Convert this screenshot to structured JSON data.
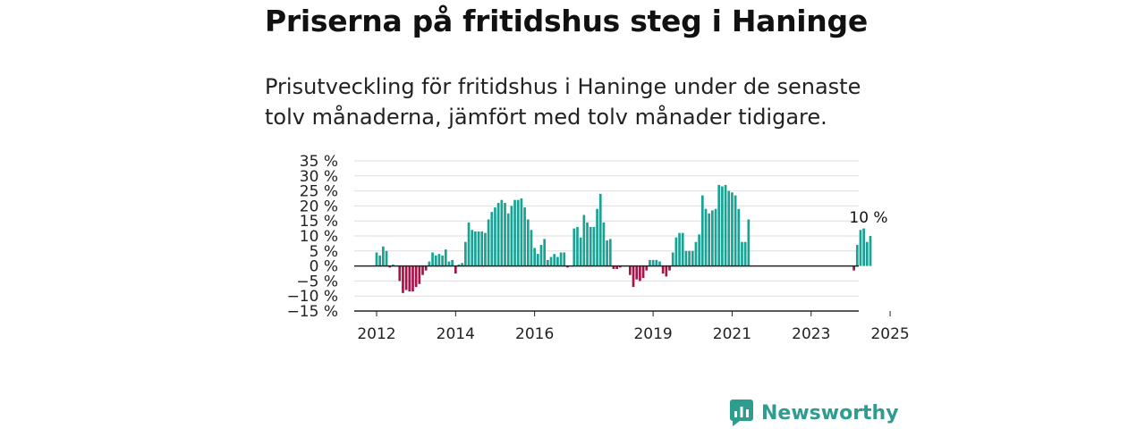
{
  "title": "Priserna på fritidshus steg i Haninge",
  "subtitle": "Prisutveckling för fritidshus i Haninge under de senaste tolv månaderna, jämfört med tolv månader tidigare.",
  "brand": {
    "name": "Newsworthy",
    "logo_icon": "newsworthy-logo-icon",
    "color": "#2e9c8f"
  },
  "colors": {
    "positive": "#1aa294",
    "negative": "#a8144a",
    "grid": "#dddddd",
    "zero_line": "#222222"
  },
  "chart_data": {
    "type": "bar",
    "x_unit": "month",
    "x_start": "2012-01",
    "y_ticks": [
      "35 %",
      "30 %",
      "25 %",
      "20 %",
      "15 %",
      "10 %",
      "5 %",
      "0 %",
      "−5 %",
      "−10 %",
      "−15 %"
    ],
    "ylim": [
      -15,
      35
    ],
    "x_ticks": [
      "2012",
      "2014",
      "2016",
      "2019",
      "2021",
      "2023",
      "2025"
    ],
    "grid": true,
    "annotation": {
      "text": "10 %",
      "value": 10
    },
    "values": [
      4.5,
      3.5,
      6.5,
      5,
      -0.5,
      0.5,
      null,
      -5,
      -9,
      -8,
      -8.5,
      -8.5,
      -7,
      -6,
      -3,
      -1.5,
      1.5,
      4.5,
      3.5,
      4,
      3.5,
      5.5,
      1.5,
      2,
      -2.5,
      0.5,
      1,
      8,
      14.5,
      12,
      11.5,
      11.5,
      11.5,
      11,
      15.5,
      18,
      19.5,
      21,
      22,
      21,
      17.5,
      20,
      22,
      22,
      22.5,
      19.5,
      15.5,
      12,
      6,
      4,
      7,
      9,
      2,
      3,
      4,
      3,
      4.5,
      4.5,
      -0.5,
      null,
      12.5,
      13,
      9.5,
      17,
      14.5,
      13,
      13,
      19,
      24,
      14.5,
      8.5,
      9,
      -1,
      -1,
      -0.5,
      null,
      null,
      -3,
      -7,
      -4.5,
      -5,
      -4,
      -1.5,
      2,
      2,
      2,
      1.5,
      -2.5,
      -3.5,
      -1.5,
      4.5,
      9.5,
      11,
      11,
      5,
      5,
      5,
      8,
      10.5,
      23.5,
      19,
      17.5,
      18.5,
      19,
      27,
      26.5,
      27,
      25,
      24.5,
      23.5,
      19,
      8,
      8,
      15.5,
      null,
      null,
      null,
      null,
      null,
      null,
      null,
      null,
      null,
      null,
      null,
      null,
      null,
      null,
      null,
      null,
      null,
      null,
      null,
      null,
      null,
      null,
      null,
      null,
      null,
      null,
      null,
      null,
      null,
      null,
      null,
      -1.5,
      7,
      12,
      12.5,
      8,
      10
    ]
  }
}
